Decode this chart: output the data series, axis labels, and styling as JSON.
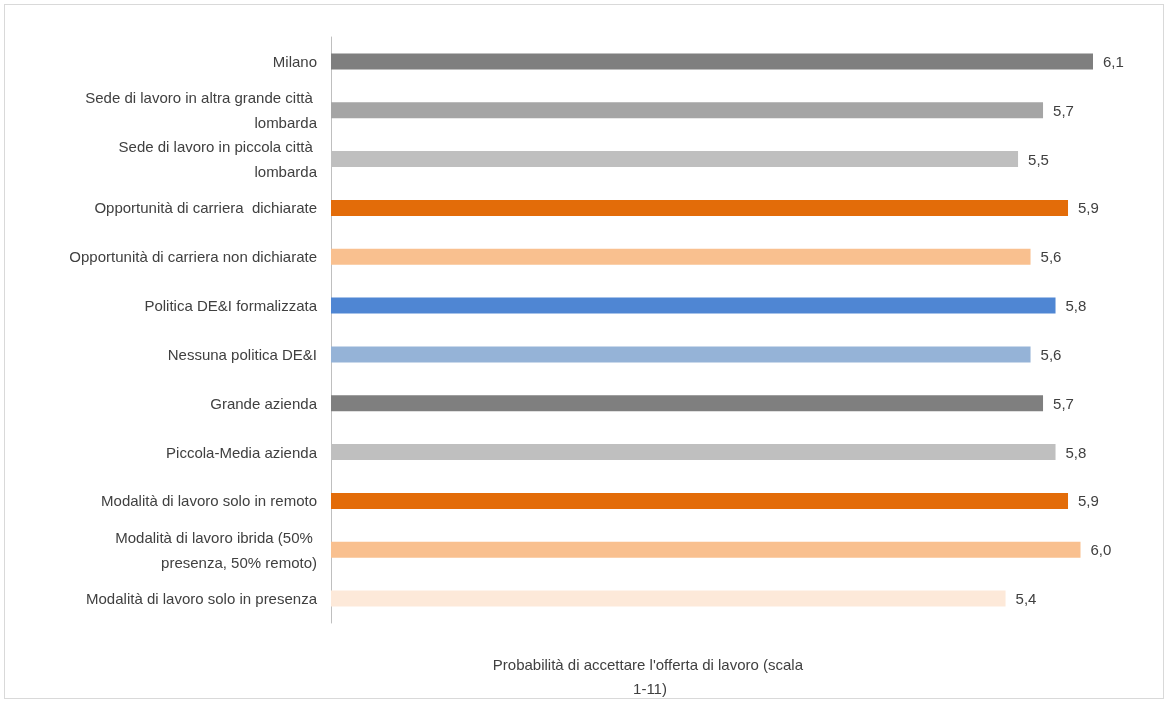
{
  "chart_data": {
    "type": "bar",
    "orientation": "horizontal",
    "xlabel": "Probabilità di accettare l'offerta di lavoro (scala 1-11)",
    "categories": [
      "Milano",
      "Sede di lavoro in altra grande città lombarda",
      "Sede di lavoro in piccola città lombarda",
      "Opportunità di carriera  dichiarate",
      "Opportunità di carriera non dichiarate",
      "Politica DE&I formalizzata",
      "Nessuna politica DE&I",
      "Grande azienda",
      "Piccola-Media azienda",
      "Modalità di lavoro solo in remoto",
      "Modalità di lavoro ibrida (50% presenza, 50% remoto)",
      "Modalità di lavoro solo in presenza"
    ],
    "values": [
      6.1,
      5.7,
      5.5,
      5.9,
      5.6,
      5.8,
      5.6,
      5.7,
      5.8,
      5.9,
      6.0,
      5.4
    ],
    "value_labels": [
      "6,1",
      "5,7",
      "5,5",
      "5,9",
      "5,6",
      "5,8",
      "5,6",
      "5,7",
      "5,8",
      "5,9",
      "6,0",
      "5,4"
    ],
    "colors": [
      "#7f7f7f",
      "#a5a5a5",
      "#bfbfbf",
      "#e36c09",
      "#f9c08f",
      "#4f86d3",
      "#95b3d7",
      "#7f7f7f",
      "#bfbfbf",
      "#e36c09",
      "#f9c08f",
      "#fde9d9"
    ],
    "tick_labels": "y"
  }
}
